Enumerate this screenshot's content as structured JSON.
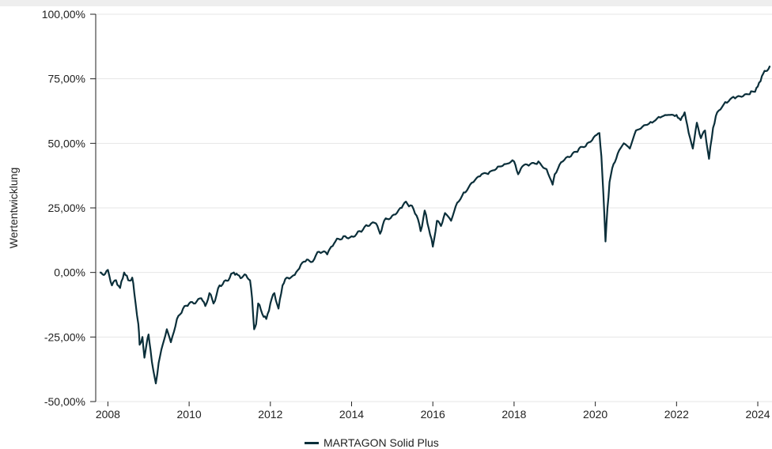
{
  "chart_data": {
    "type": "line",
    "title": "",
    "xlabel": "",
    "ylabel": "Wertentwicklung",
    "ylim": [
      -50,
      100
    ],
    "xlim": [
      2007.7,
      2024.35
    ],
    "y_ticks": [
      {
        "value": 100,
        "label": "100,00%"
      },
      {
        "value": 75,
        "label": "75,00%"
      },
      {
        "value": 50,
        "label": "50,00%"
      },
      {
        "value": 25,
        "label": "25,00%"
      },
      {
        "value": 0,
        "label": "0,00%"
      },
      {
        "value": -25,
        "label": "-25,00%"
      },
      {
        "value": -50,
        "label": "-50,00%"
      }
    ],
    "x_ticks": [
      {
        "value": 2008,
        "label": "2008"
      },
      {
        "value": 2010,
        "label": "2010"
      },
      {
        "value": 2012,
        "label": "2012"
      },
      {
        "value": 2014,
        "label": "2014"
      },
      {
        "value": 2016,
        "label": "2016"
      },
      {
        "value": 2018,
        "label": "2018"
      },
      {
        "value": 2020,
        "label": "2020"
      },
      {
        "value": 2022,
        "label": "2022"
      },
      {
        "value": 2024,
        "label": "2024"
      }
    ],
    "grid": true,
    "legend_position": "bottom-center",
    "series_color": "#0b2f3a",
    "series": [
      {
        "name": "MARTAGON Solid Plus",
        "x": [
          2007.8,
          2007.9,
          2008.0,
          2008.1,
          2008.2,
          2008.3,
          2008.4,
          2008.5,
          2008.6,
          2008.65,
          2008.75,
          2008.78,
          2008.85,
          2008.9,
          2008.95,
          2009.0,
          2009.05,
          2009.12,
          2009.18,
          2009.25,
          2009.35,
          2009.45,
          2009.55,
          2009.7,
          2009.85,
          2010.0,
          2010.15,
          2010.3,
          2010.4,
          2010.5,
          2010.6,
          2010.75,
          2010.9,
          2011.0,
          2011.1,
          2011.2,
          2011.3,
          2011.4,
          2011.5,
          2011.55,
          2011.6,
          2011.65,
          2011.7,
          2011.8,
          2011.9,
          2012.0,
          2012.1,
          2012.2,
          2012.3,
          2012.4,
          2012.5,
          2012.6,
          2012.75,
          2012.9,
          2013.0,
          2013.2,
          2013.4,
          2013.5,
          2013.6,
          2013.8,
          2014.0,
          2014.2,
          2014.4,
          2014.6,
          2014.7,
          2014.8,
          2015.0,
          2015.2,
          2015.3,
          2015.45,
          2015.6,
          2015.7,
          2015.8,
          2015.9,
          2016.0,
          2016.1,
          2016.2,
          2016.3,
          2016.45,
          2016.6,
          2016.8,
          2017.0,
          2017.2,
          2017.4,
          2017.6,
          2017.8,
          2018.0,
          2018.1,
          2018.2,
          2018.4,
          2018.6,
          2018.8,
          2018.95,
          2019.0,
          2019.2,
          2019.4,
          2019.6,
          2019.8,
          2020.0,
          2020.1,
          2020.15,
          2020.2,
          2020.25,
          2020.3,
          2020.35,
          2020.45,
          2020.55,
          2020.7,
          2020.85,
          2021.0,
          2021.2,
          2021.4,
          2021.6,
          2021.8,
          2022.0,
          2022.1,
          2022.2,
          2022.3,
          2022.4,
          2022.5,
          2022.6,
          2022.7,
          2022.8,
          2022.9,
          2023.0,
          2023.2,
          2023.4,
          2023.6,
          2023.8,
          2023.9,
          2024.0,
          2024.1,
          2024.2,
          2024.3
        ],
        "values": [
          0,
          -1,
          1,
          -5,
          -3,
          -6,
          0,
          -3,
          -2,
          -8,
          -20,
          -28,
          -25,
          -33,
          -28,
          -24,
          -30,
          -38,
          -43,
          -35,
          -28,
          -22,
          -27,
          -18,
          -14,
          -12,
          -12,
          -10,
          -13,
          -8,
          -12,
          -5,
          -3,
          -2,
          0,
          -1,
          -2,
          -1,
          -3,
          -10,
          -22,
          -20,
          -12,
          -16,
          -18,
          -12,
          -8,
          -14,
          -5,
          -2,
          -2,
          -1,
          3,
          5,
          4,
          8,
          7,
          10,
          12,
          14,
          14,
          16,
          18,
          19,
          15,
          20,
          22,
          25,
          27,
          26,
          22,
          16,
          24,
          17,
          10,
          20,
          18,
          23,
          20,
          27,
          31,
          35,
          38,
          39,
          41,
          42,
          43,
          38,
          41,
          42,
          43,
          40,
          34,
          38,
          43,
          45,
          48,
          50,
          53,
          54,
          45,
          30,
          12,
          25,
          35,
          42,
          46,
          50,
          48,
          55,
          57,
          58,
          60,
          61,
          61,
          59,
          62,
          54,
          48,
          58,
          52,
          55,
          44,
          56,
          62,
          66,
          68,
          68,
          69,
          70,
          72,
          76,
          78,
          80
        ]
      }
    ]
  }
}
